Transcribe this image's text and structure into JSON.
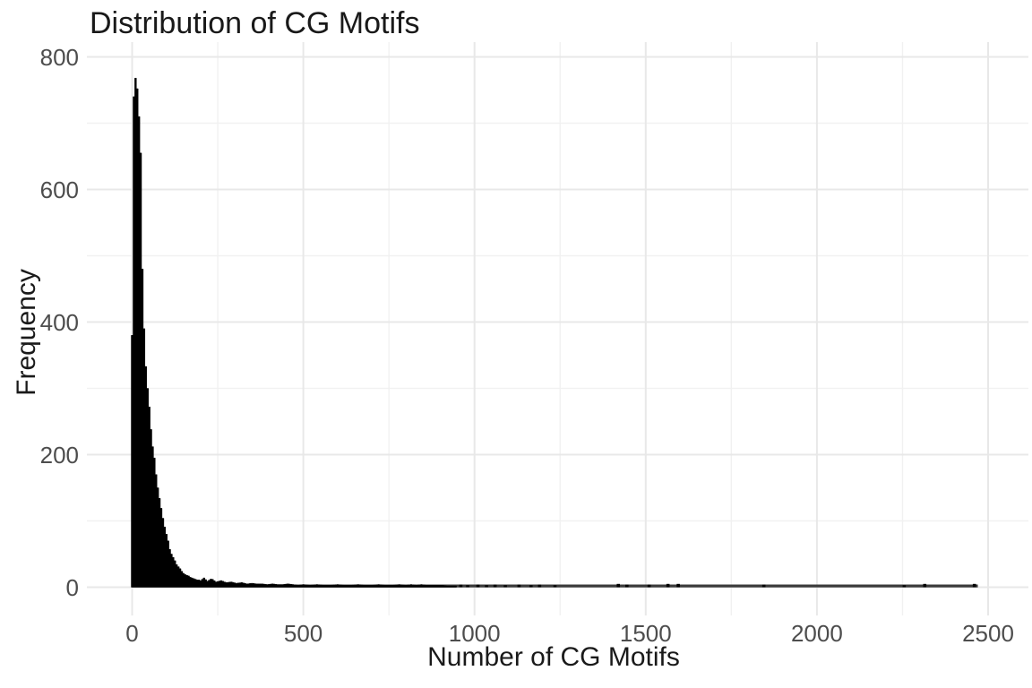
{
  "title": "Distribution of CG Motifs",
  "chart_data": {
    "type": "histogram",
    "title": "Distribution of CG Motifs",
    "xlabel": "Number of CG Motifs",
    "ylabel": "Frequency",
    "x_ticks": [
      0,
      500,
      1000,
      1500,
      2000,
      2500
    ],
    "x_minor_ticks": [
      250,
      750,
      1250,
      1750,
      2250
    ],
    "y_ticks": [
      0,
      200,
      400,
      600,
      800
    ],
    "y_minor_ticks": [
      100,
      300,
      500,
      700
    ],
    "xlim": [
      -130,
      2620
    ],
    "ylim": [
      0,
      800
    ],
    "grid": true,
    "legend": false,
    "bin_width": 5,
    "peak": {
      "x": 10,
      "count": 768
    },
    "envelope_bins": [
      [
        0,
        380
      ],
      [
        5,
        740
      ],
      [
        10,
        768
      ],
      [
        15,
        752
      ],
      [
        20,
        710
      ],
      [
        25,
        655
      ],
      [
        30,
        480
      ],
      [
        35,
        390
      ],
      [
        40,
        333
      ],
      [
        45,
        300
      ],
      [
        50,
        272
      ],
      [
        55,
        238
      ],
      [
        60,
        212
      ],
      [
        65,
        195
      ],
      [
        70,
        170
      ],
      [
        75,
        150
      ],
      [
        80,
        134
      ],
      [
        85,
        119
      ],
      [
        90,
        104
      ],
      [
        95,
        91
      ],
      [
        100,
        80
      ],
      [
        105,
        70
      ],
      [
        110,
        57
      ],
      [
        115,
        50
      ],
      [
        120,
        45
      ],
      [
        125,
        40
      ],
      [
        130,
        34
      ],
      [
        135,
        31
      ],
      [
        140,
        28
      ],
      [
        145,
        24
      ],
      [
        150,
        21
      ],
      [
        155,
        19
      ],
      [
        160,
        18
      ],
      [
        165,
        17
      ],
      [
        170,
        15
      ],
      [
        175,
        14
      ],
      [
        180,
        13
      ],
      [
        185,
        12
      ],
      [
        190,
        11
      ],
      [
        195,
        11
      ],
      [
        200,
        10
      ],
      [
        210,
        14
      ],
      [
        220,
        9
      ],
      [
        232,
        13
      ],
      [
        245,
        8
      ],
      [
        260,
        10
      ],
      [
        275,
        7
      ],
      [
        290,
        8
      ],
      [
        305,
        6
      ],
      [
        320,
        7
      ],
      [
        335,
        5
      ],
      [
        350,
        6
      ],
      [
        365,
        5
      ],
      [
        380,
        5
      ],
      [
        395,
        4
      ],
      [
        410,
        5
      ],
      [
        425,
        4
      ],
      [
        440,
        4
      ],
      [
        455,
        5
      ],
      [
        470,
        4
      ],
      [
        485,
        3
      ],
      [
        500,
        4
      ],
      [
        520,
        3
      ],
      [
        540,
        4
      ],
      [
        560,
        3
      ],
      [
        580,
        3
      ],
      [
        600,
        4
      ],
      [
        620,
        3
      ],
      [
        640,
        3
      ],
      [
        660,
        4
      ],
      [
        680,
        3
      ],
      [
        700,
        3
      ],
      [
        720,
        4
      ],
      [
        740,
        3
      ],
      [
        760,
        3
      ],
      [
        780,
        4
      ],
      [
        800,
        3
      ],
      [
        815,
        4
      ],
      [
        830,
        3
      ],
      [
        845,
        4
      ],
      [
        860,
        3
      ],
      [
        875,
        3
      ],
      [
        890,
        3
      ],
      [
        905,
        3
      ],
      [
        920,
        2
      ],
      [
        935,
        2
      ],
      [
        945,
        2
      ]
    ],
    "tail_spikes": [
      [
        960,
        4
      ],
      [
        980,
        3
      ],
      [
        1010,
        4
      ],
      [
        1035,
        3
      ],
      [
        1060,
        4
      ],
      [
        1090,
        3
      ],
      [
        1130,
        4
      ],
      [
        1165,
        3
      ],
      [
        1190,
        4
      ],
      [
        1235,
        3
      ],
      [
        1420,
        5
      ],
      [
        1445,
        4
      ],
      [
        1510,
        4
      ],
      [
        1565,
        5
      ],
      [
        1595,
        5
      ],
      [
        1845,
        4
      ],
      [
        2255,
        3
      ],
      [
        2315,
        5
      ],
      [
        2460,
        5
      ]
    ],
    "baseline_extent": [
      0,
      2470
    ],
    "baseline_count": 2,
    "colors": {
      "bar": "#000000",
      "baseline_line": "#3a3a3a",
      "grid_major": "#e8e8e8",
      "grid_minor": "#f1f1f1",
      "tick_label": "#4d4d4d",
      "axis_title": "#1a1a1a",
      "title": "#191919",
      "background": "#ffffff"
    }
  }
}
